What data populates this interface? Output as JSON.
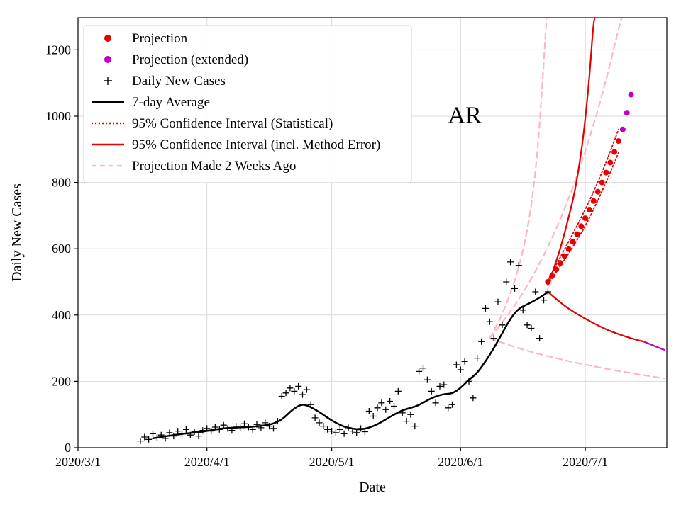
{
  "chart_data": {
    "type": "line+scatter",
    "title": "",
    "annotation": {
      "text": "AR",
      "day": 93,
      "value": 980
    },
    "x_axis": {
      "label": "Date",
      "unit": "days since 2020/3/1",
      "domain": [
        0,
        141.6
      ],
      "ticks": [
        {
          "day": 0,
          "label": "2020/3/1"
        },
        {
          "day": 31,
          "label": "2020/4/1"
        },
        {
          "day": 61,
          "label": "2020/5/1"
        },
        {
          "day": 92,
          "label": "2020/6/1"
        },
        {
          "day": 122,
          "label": "2020/7/1"
        }
      ]
    },
    "y_axis": {
      "label": "Daily New Cases",
      "domain": [
        0,
        1297
      ],
      "ticks": [
        0,
        200,
        400,
        600,
        800,
        1000,
        1200
      ]
    },
    "grid": true,
    "legend": {
      "position": "upper-left",
      "items": [
        {
          "id": "projection",
          "label": "Projection",
          "marker": "dot",
          "color": "#e60000"
        },
        {
          "id": "projection-extended",
          "label": "Projection (extended)",
          "marker": "dot",
          "color": "#bf00bf"
        },
        {
          "id": "daily-new-cases",
          "label": "Daily New Cases",
          "marker": "plus",
          "color": "#000000"
        },
        {
          "id": "seven-day-average",
          "label": "7-day Average",
          "marker": "solid-line",
          "color": "#000000"
        },
        {
          "id": "ci-statistical",
          "label": "95% Confidence Interval (Statistical)",
          "marker": "dotted-line",
          "color": "#e60000"
        },
        {
          "id": "ci-method-error",
          "label": "95% Confidence Interval (incl. Method Error)",
          "marker": "solid-line",
          "color": "#e60000"
        },
        {
          "id": "projection-2-weeks-ago",
          "label": "Projection Made 2 Weeks Ago",
          "marker": "dashed-line",
          "color": "#ffb6c1"
        }
      ]
    },
    "series": [
      {
        "id": "old-projection-upper",
        "legend": "Projection Made 2 Weeks Ago",
        "type": "line",
        "color": "#ffb6c1",
        "width": 2.2,
        "dash": "8 6",
        "points": [
          [
            99,
            330
          ],
          [
            101,
            375
          ],
          [
            103,
            432
          ],
          [
            105,
            502
          ],
          [
            106,
            545
          ],
          [
            107,
            595
          ],
          [
            108,
            655
          ],
          [
            109,
            730
          ],
          [
            110,
            830
          ],
          [
            111,
            970
          ],
          [
            112,
            1160
          ],
          [
            112.7,
            1300
          ]
        ]
      },
      {
        "id": "old-projection-central",
        "legend": "Projection Made 2 Weeks Ago",
        "type": "line",
        "color": "#ffb6c1",
        "width": 2.2,
        "dash": "8 6",
        "points": [
          [
            99,
            330
          ],
          [
            103,
            392
          ],
          [
            107,
            466
          ],
          [
            111,
            554
          ],
          [
            115,
            659
          ],
          [
            119,
            783
          ],
          [
            123,
            931
          ],
          [
            127,
            1107
          ],
          [
            130,
            1263
          ],
          [
            130.8,
            1300
          ]
        ]
      },
      {
        "id": "old-projection-lower",
        "legend": "Projection Made 2 Weeks Ago",
        "type": "line",
        "color": "#ffb6c1",
        "width": 2.2,
        "dash": "8 6",
        "points": [
          [
            99,
            330
          ],
          [
            103,
            312
          ],
          [
            107,
            296
          ],
          [
            111,
            282
          ],
          [
            115,
            270
          ],
          [
            119,
            258
          ],
          [
            123,
            248
          ],
          [
            127,
            238
          ],
          [
            131,
            229
          ],
          [
            135,
            221
          ],
          [
            139,
            213
          ],
          [
            141,
            209
          ]
        ]
      },
      {
        "id": "ci-statistical-upper",
        "legend": "95% Confidence Interval (Statistical)",
        "type": "line",
        "color": "#e60000",
        "width": 1.8,
        "dash": "2 3",
        "points": [
          [
            113,
            505
          ],
          [
            116,
            575
          ],
          [
            119,
            645
          ],
          [
            122,
            718
          ],
          [
            125,
            800
          ],
          [
            128,
            893
          ],
          [
            130,
            960
          ]
        ]
      },
      {
        "id": "ci-statistical-lower",
        "legend": "95% Confidence Interval (Statistical)",
        "type": "line",
        "color": "#e60000",
        "width": 1.8,
        "dash": "2 3",
        "points": [
          [
            113,
            492
          ],
          [
            116,
            548
          ],
          [
            119,
            605
          ],
          [
            122,
            668
          ],
          [
            125,
            745
          ],
          [
            128,
            830
          ],
          [
            130,
            890
          ]
        ]
      },
      {
        "id": "ci-method-upper",
        "legend": "95% Confidence Interval (incl. Method Error)",
        "type": "line",
        "color": "#e60000",
        "width": 2.2,
        "points": [
          [
            113,
            490
          ],
          [
            115,
            560
          ],
          [
            117,
            645
          ],
          [
            119,
            745
          ],
          [
            120,
            810
          ],
          [
            121,
            890
          ],
          [
            122,
            990
          ],
          [
            123,
            1120
          ],
          [
            124,
            1290
          ],
          [
            124.5,
            1300
          ]
        ]
      },
      {
        "id": "ci-method-lower",
        "legend": "95% Confidence Interval (incl. Method Error)",
        "type": "line",
        "color": "#e60000",
        "width": 2.2,
        "points": [
          [
            113,
            470
          ],
          [
            115,
            448
          ],
          [
            117,
            428
          ],
          [
            119,
            411
          ],
          [
            121,
            396
          ],
          [
            123,
            382
          ],
          [
            125,
            369
          ],
          [
            127,
            357
          ],
          [
            129,
            347
          ],
          [
            131,
            338
          ],
          [
            133,
            330
          ],
          [
            135,
            323
          ],
          [
            136,
            320
          ]
        ]
      },
      {
        "id": "ci-method-lower-extended",
        "legend": "Projection (extended)",
        "type": "line",
        "color": "#bf00bf",
        "width": 2.2,
        "points": [
          [
            136,
            320
          ],
          [
            138,
            310
          ],
          [
            140,
            300
          ],
          [
            141,
            295
          ]
        ]
      },
      {
        "id": "seven-day-average",
        "legend": "7-day Average",
        "type": "line",
        "color": "#000000",
        "width": 2.5,
        "points": [
          [
            18,
            28
          ],
          [
            21,
            34
          ],
          [
            24,
            40
          ],
          [
            27,
            44
          ],
          [
            30,
            48
          ],
          [
            33,
            55
          ],
          [
            36,
            60
          ],
          [
            39,
            61
          ],
          [
            42,
            63
          ],
          [
            45,
            67
          ],
          [
            47,
            72
          ],
          [
            49,
            85
          ],
          [
            50,
            96
          ],
          [
            51,
            108
          ],
          [
            52,
            118
          ],
          [
            53,
            126
          ],
          [
            54,
            130
          ],
          [
            55,
            128
          ],
          [
            56,
            122
          ],
          [
            58,
            108
          ],
          [
            60,
            90
          ],
          [
            62,
            75
          ],
          [
            64,
            63
          ],
          [
            66,
            57
          ],
          [
            68,
            55
          ],
          [
            70,
            60
          ],
          [
            72,
            70
          ],
          [
            74,
            85
          ],
          [
            76,
            100
          ],
          [
            78,
            113
          ],
          [
            80,
            120
          ],
          [
            82,
            128
          ],
          [
            84,
            143
          ],
          [
            86,
            155
          ],
          [
            88,
            162
          ],
          [
            90,
            163
          ],
          [
            92,
            180
          ],
          [
            94,
            205
          ],
          [
            96,
            225
          ],
          [
            98,
            260
          ],
          [
            100,
            300
          ],
          [
            102,
            345
          ],
          [
            104,
            390
          ],
          [
            106,
            420
          ],
          [
            108,
            432
          ],
          [
            110,
            445
          ],
          [
            112,
            460
          ],
          [
            113,
            470
          ]
        ]
      },
      {
        "id": "daily-new-cases",
        "legend": "Daily New Cases",
        "type": "plus",
        "color": "#000000",
        "size": 4.5,
        "points": [
          [
            15,
            20
          ],
          [
            16,
            32
          ],
          [
            17,
            25
          ],
          [
            18,
            42
          ],
          [
            19,
            30
          ],
          [
            20,
            38
          ],
          [
            21,
            28
          ],
          [
            22,
            45
          ],
          [
            23,
            35
          ],
          [
            24,
            50
          ],
          [
            25,
            42
          ],
          [
            26,
            55
          ],
          [
            27,
            38
          ],
          [
            28,
            48
          ],
          [
            29,
            35
          ],
          [
            30,
            52
          ],
          [
            31,
            58
          ],
          [
            32,
            50
          ],
          [
            33,
            62
          ],
          [
            34,
            55
          ],
          [
            35,
            68
          ],
          [
            36,
            58
          ],
          [
            37,
            52
          ],
          [
            38,
            65
          ],
          [
            39,
            60
          ],
          [
            40,
            72
          ],
          [
            41,
            62
          ],
          [
            42,
            55
          ],
          [
            43,
            70
          ],
          [
            44,
            60
          ],
          [
            45,
            75
          ],
          [
            46,
            65
          ],
          [
            47,
            58
          ],
          [
            48,
            80
          ],
          [
            49,
            155
          ],
          [
            50,
            165
          ],
          [
            51,
            180
          ],
          [
            52,
            170
          ],
          [
            53,
            185
          ],
          [
            54,
            160
          ],
          [
            55,
            175
          ],
          [
            56,
            130
          ],
          [
            57,
            90
          ],
          [
            58,
            75
          ],
          [
            59,
            65
          ],
          [
            60,
            55
          ],
          [
            61,
            50
          ],
          [
            62,
            45
          ],
          [
            63,
            55
          ],
          [
            64,
            42
          ],
          [
            65,
            60
          ],
          [
            66,
            50
          ],
          [
            67,
            45
          ],
          [
            68,
            58
          ],
          [
            69,
            48
          ],
          [
            70,
            110
          ],
          [
            71,
            95
          ],
          [
            72,
            120
          ],
          [
            73,
            135
          ],
          [
            74,
            115
          ],
          [
            75,
            140
          ],
          [
            76,
            125
          ],
          [
            77,
            170
          ],
          [
            78,
            105
          ],
          [
            79,
            80
          ],
          [
            80,
            100
          ],
          [
            81,
            65
          ],
          [
            82,
            230
          ],
          [
            83,
            240
          ],
          [
            84,
            205
          ],
          [
            85,
            170
          ],
          [
            86,
            135
          ],
          [
            87,
            185
          ],
          [
            88,
            190
          ],
          [
            89,
            120
          ],
          [
            90,
            130
          ],
          [
            91,
            250
          ],
          [
            92,
            235
          ],
          [
            93,
            260
          ],
          [
            94,
            200
          ],
          [
            95,
            150
          ],
          [
            96,
            270
          ],
          [
            97,
            320
          ],
          [
            98,
            420
          ],
          [
            99,
            380
          ],
          [
            100,
            330
          ],
          [
            101,
            440
          ],
          [
            102,
            370
          ],
          [
            103,
            500
          ],
          [
            104,
            560
          ],
          [
            105,
            480
          ],
          [
            106,
            550
          ],
          [
            107,
            415
          ],
          [
            108,
            370
          ],
          [
            109,
            360
          ],
          [
            110,
            470
          ],
          [
            111,
            330
          ],
          [
            112,
            445
          ],
          [
            113,
            470
          ]
        ]
      },
      {
        "id": "projection",
        "legend": "Projection",
        "type": "dots",
        "color": "#e60000",
        "size": 4,
        "points": [
          [
            113,
            500
          ],
          [
            114,
            518
          ],
          [
            115,
            538
          ],
          [
            116,
            557
          ],
          [
            117,
            578
          ],
          [
            118,
            599
          ],
          [
            119,
            621
          ],
          [
            120,
            644
          ],
          [
            121,
            668
          ],
          [
            122,
            692
          ],
          [
            123,
            718
          ],
          [
            124,
            744
          ],
          [
            125,
            772
          ],
          [
            126,
            800
          ],
          [
            127,
            830
          ],
          [
            128,
            860
          ],
          [
            129,
            892
          ],
          [
            130,
            925
          ]
        ]
      },
      {
        "id": "projection-extended",
        "legend": "Projection (extended)",
        "type": "dots",
        "color": "#bf00bf",
        "size": 4,
        "points": [
          [
            131,
            960
          ],
          [
            132,
            1010
          ],
          [
            133,
            1065
          ]
        ]
      }
    ]
  }
}
